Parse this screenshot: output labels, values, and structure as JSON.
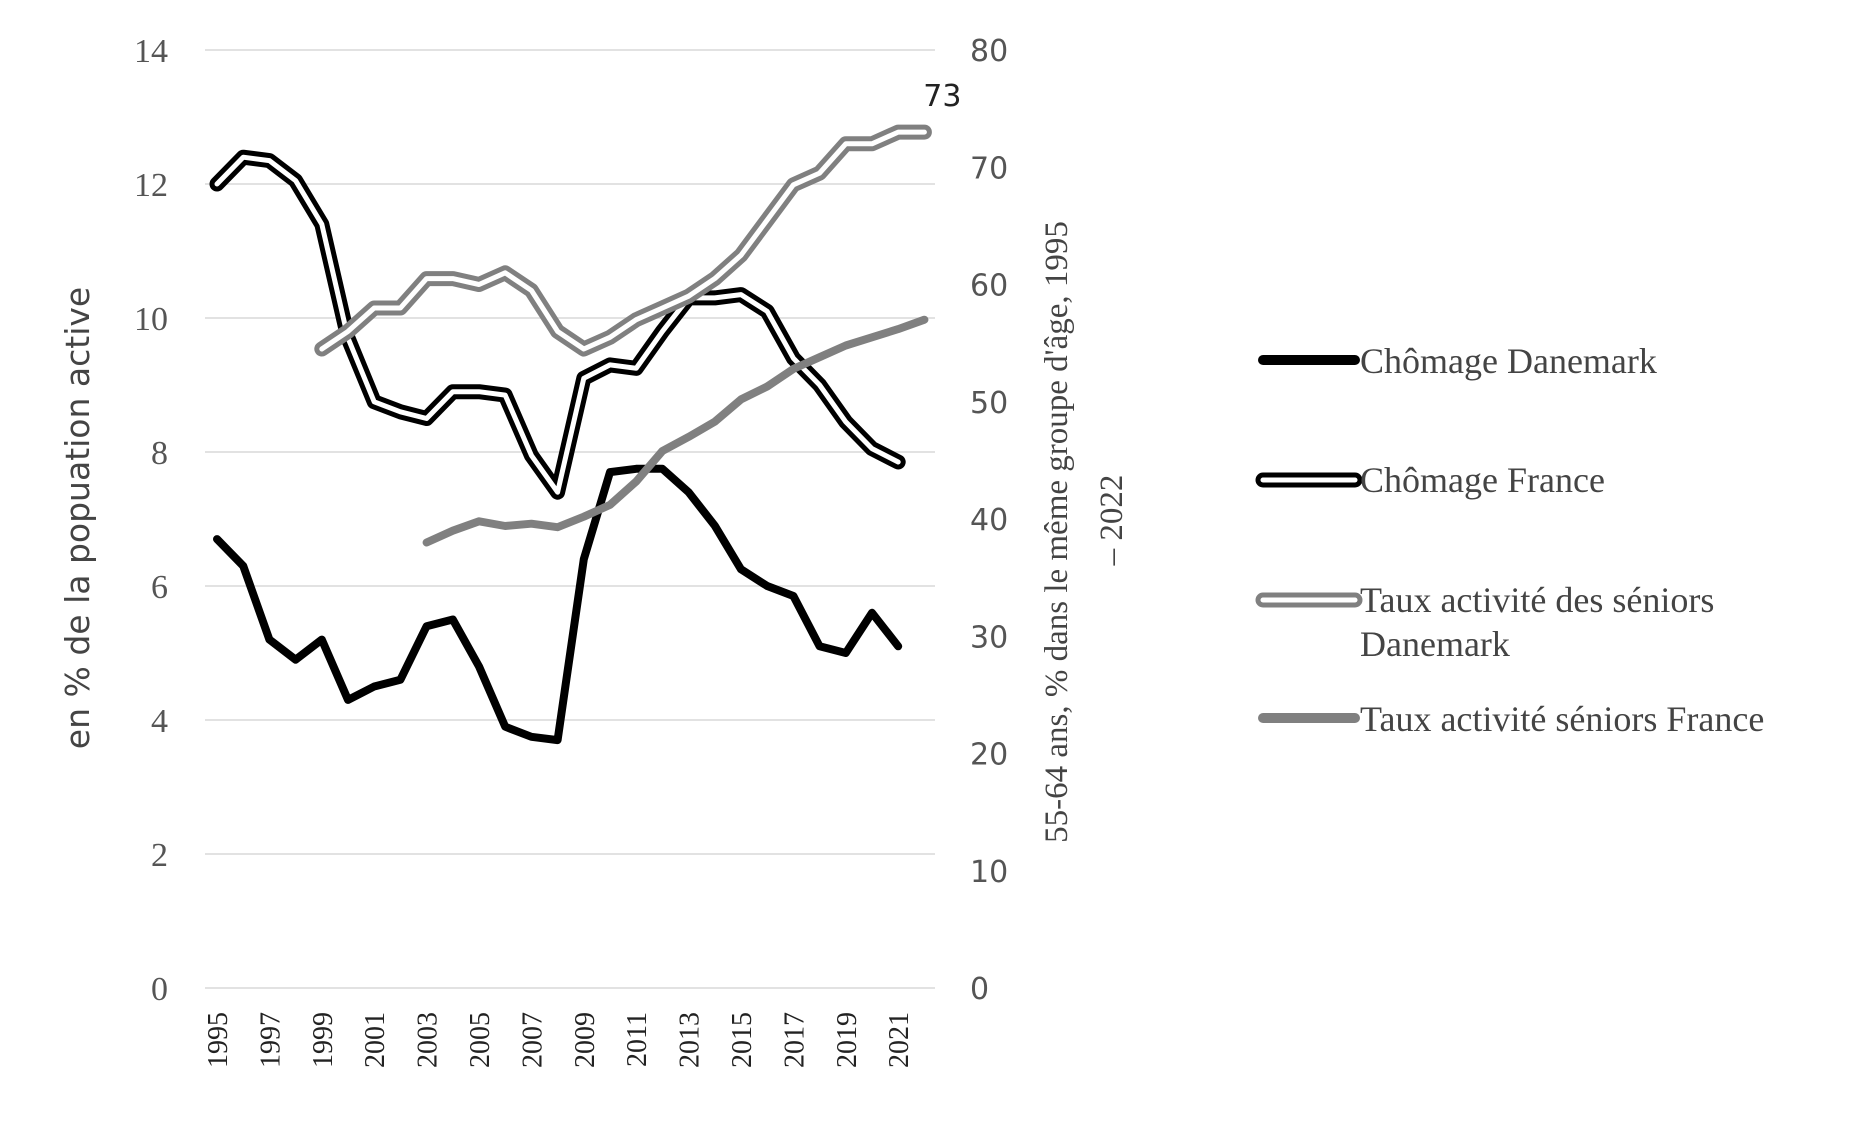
{
  "chart_data": {
    "type": "line",
    "categories": [
      "1995",
      "1996",
      "1997",
      "1998",
      "1999",
      "2000",
      "2001",
      "2002",
      "2003",
      "2004",
      "2005",
      "2006",
      "2007",
      "2008",
      "2009",
      "2010",
      "2011",
      "2012",
      "2013",
      "2014",
      "2015",
      "2016",
      "2017",
      "2018",
      "2019",
      "2020",
      "2021",
      "2022"
    ],
    "x_tick_labels": [
      "1995",
      "1997",
      "1999",
      "2001",
      "2003",
      "2005",
      "2007",
      "2009",
      "2011",
      "2013",
      "2015",
      "2017",
      "2019",
      "2021"
    ],
    "ylabel_left": "en % de la popuation active",
    "ylabel_right": [
      "55-64 ans, % dans le même groupe d'âge, 1995",
      "– 2022"
    ],
    "y_left_range": [
      0,
      14
    ],
    "y_left_ticks": [
      "0",
      "2",
      "4",
      "6",
      "8",
      "10",
      "12",
      "14"
    ],
    "y_right_range": [
      0,
      80
    ],
    "y_right_ticks": [
      "0",
      "10",
      "20",
      "30",
      "40",
      "50",
      "60",
      "70",
      "80"
    ],
    "grid": true,
    "legend_position": "right",
    "annotation": {
      "text": "73",
      "series": "Taux activité des séniors Danemark",
      "x": "2022",
      "y": 73
    },
    "series": [
      {
        "name": "Chômage Danemark",
        "axis": "left",
        "style": "solid",
        "color": "#000000",
        "values": [
          6.7,
          6.3,
          5.2,
          4.9,
          5.2,
          4.3,
          4.5,
          4.6,
          5.4,
          5.5,
          4.8,
          3.9,
          3.75,
          3.7,
          6.4,
          7.7,
          7.75,
          7.75,
          7.4,
          6.9,
          6.25,
          6.0,
          5.85,
          5.1,
          5.0,
          5.6,
          5.1,
          null
        ]
      },
      {
        "name": "Chômage France",
        "axis": "left",
        "style": "hollow",
        "color": "#000000",
        "values": [
          12.0,
          12.4,
          12.35,
          12.05,
          11.4,
          9.7,
          8.75,
          8.6,
          8.5,
          8.9,
          8.9,
          8.85,
          7.95,
          7.4,
          9.1,
          9.3,
          9.25,
          9.8,
          10.3,
          10.3,
          10.35,
          10.1,
          9.4,
          9.0,
          8.45,
          8.05,
          7.85,
          null
        ]
      },
      {
        "name": "Taux activité des séniors Danemark",
        "axis": "right",
        "style": "hollow",
        "color": "#808080",
        "values": [
          null,
          null,
          null,
          null,
          54.5,
          56.0,
          58.0,
          58.0,
          60.5,
          60.5,
          60.0,
          61.0,
          59.5,
          56.0,
          54.5,
          55.5,
          57.0,
          58.0,
          59.0,
          60.5,
          62.5,
          65.5,
          68.5,
          69.5,
          72.0,
          72.0,
          73.0,
          73.0
        ]
      },
      {
        "name": "Taux activité séniors France",
        "axis": "right",
        "style": "solid",
        "color": "#808080",
        "values": [
          null,
          null,
          null,
          null,
          null,
          null,
          null,
          null,
          38.0,
          39.0,
          39.8,
          39.4,
          39.6,
          39.3,
          40.2,
          41.2,
          43.2,
          45.8,
          47.0,
          48.3,
          50.2,
          51.3,
          52.8,
          53.8,
          54.8,
          55.5,
          56.2,
          57.0
        ]
      }
    ],
    "legend": [
      {
        "label": "Chômage Danemark"
      },
      {
        "label": "Chômage France"
      },
      {
        "label": [
          "Taux activité des séniors",
          "Danemark"
        ]
      },
      {
        "label": "Taux activité séniors France"
      }
    ]
  }
}
